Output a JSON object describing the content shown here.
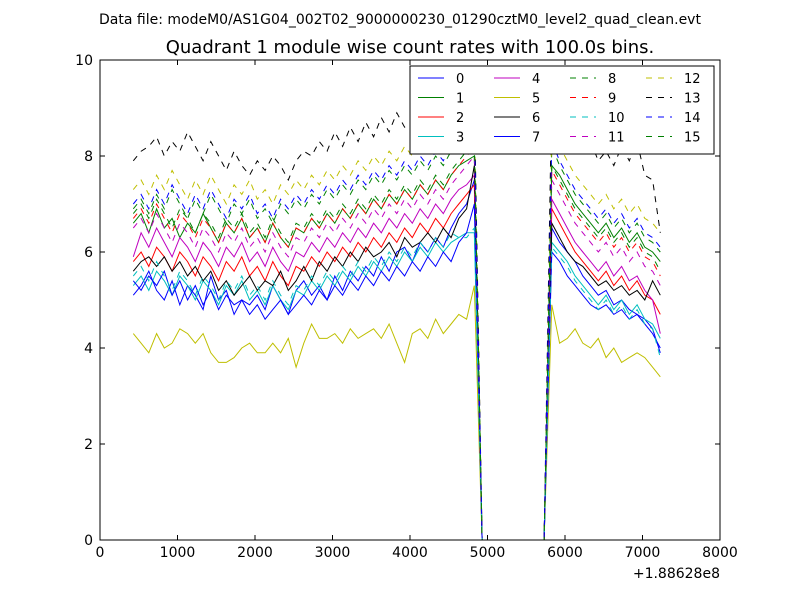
{
  "suptitle": "Data file: modeM0/AS1G04_002T02_9000000230_01290cztM0_level2_quad_clean.evt",
  "chart_data": {
    "type": "line",
    "title": "Quadrant 1 module wise count rates with 100.0s bins.",
    "xlabel": "",
    "ylabel": "",
    "x_offset_label": "+1.88628e8",
    "xlim": [
      0,
      8000
    ],
    "ylim": [
      0,
      10
    ],
    "x_ticks": [
      0,
      1000,
      2000,
      3000,
      4000,
      5000,
      6000,
      7000,
      8000
    ],
    "y_ticks": [
      0,
      2,
      4,
      6,
      8,
      10
    ],
    "grid": false,
    "legend_position": "top-right",
    "legend_columns": 4,
    "x": [
      430,
      530,
      630,
      730,
      830,
      930,
      1030,
      1130,
      1230,
      1330,
      1430,
      1530,
      1630,
      1730,
      1830,
      1930,
      2030,
      2130,
      2230,
      2330,
      2430,
      2530,
      2630,
      2730,
      2830,
      2930,
      3030,
      3130,
      3230,
      3330,
      3430,
      3530,
      3630,
      3730,
      3830,
      3930,
      4030,
      4130,
      4230,
      4330,
      4430,
      4530,
      4630,
      4730,
      4830,
      4930,
      5030,
      5130,
      5230,
      5330,
      5430,
      5530,
      5630,
      5730,
      5830,
      5930,
      6030,
      6130,
      6230,
      6330,
      6430,
      6530,
      6630,
      6730,
      6830,
      6930,
      7030,
      7130,
      7230
    ],
    "series": [
      {
        "name": "0",
        "color": "#0000ff",
        "dash": "solid",
        "values": [
          5.1,
          5.3,
          5.6,
          5.2,
          5.0,
          5.4,
          4.9,
          5.3,
          5.1,
          4.8,
          5.5,
          5.0,
          5.2,
          4.7,
          5.0,
          4.9,
          5.1,
          4.8,
          5.3,
          5.0,
          4.7,
          5.2,
          5.4,
          5.1,
          5.3,
          5.0,
          5.5,
          5.2,
          5.6,
          5.4,
          5.7,
          5.5,
          5.9,
          5.6,
          6.0,
          6.1,
          5.8,
          6.2,
          6.0,
          6.3,
          6.1,
          6.5,
          6.8,
          7.0,
          7.5,
          0,
          0,
          0,
          0,
          0,
          0,
          0,
          0,
          0,
          6.5,
          6.2,
          6.0,
          5.8,
          5.5,
          5.3,
          5.1,
          5.2,
          4.9,
          5.0,
          4.8,
          4.7,
          4.6,
          4.4,
          3.9
        ]
      },
      {
        "name": "1",
        "color": "#008000",
        "dash": "solid",
        "values": [
          6.6,
          6.8,
          6.4,
          6.9,
          6.5,
          6.7,
          6.3,
          6.6,
          6.4,
          6.8,
          6.5,
          6.2,
          6.6,
          6.4,
          6.7,
          6.3,
          6.5,
          6.2,
          6.6,
          6.3,
          6.1,
          6.5,
          6.4,
          6.7,
          6.5,
          6.8,
          6.6,
          6.9,
          6.7,
          7.0,
          6.8,
          7.1,
          6.9,
          7.2,
          7.0,
          7.3,
          7.1,
          7.4,
          7.2,
          7.5,
          7.3,
          7.6,
          7.8,
          7.9,
          8.0,
          0,
          0,
          0,
          0,
          0,
          0,
          0,
          0,
          0,
          7.8,
          7.6,
          7.3,
          7.0,
          6.8,
          6.6,
          6.4,
          6.6,
          6.3,
          6.5,
          6.2,
          6.4,
          6.1,
          6.0,
          5.8
        ]
      },
      {
        "name": "2",
        "color": "#ff0000",
        "dash": "solid",
        "values": [
          5.8,
          6.0,
          5.7,
          6.1,
          5.9,
          5.6,
          6.0,
          5.8,
          5.5,
          5.9,
          5.7,
          5.4,
          5.8,
          5.6,
          5.9,
          5.5,
          5.7,
          5.4,
          5.8,
          5.5,
          5.3,
          5.7,
          5.6,
          5.9,
          5.7,
          6.0,
          5.8,
          6.1,
          5.9,
          6.2,
          6.0,
          6.3,
          6.1,
          6.4,
          6.2,
          6.5,
          6.3,
          6.6,
          6.4,
          6.7,
          6.5,
          6.8,
          7.0,
          7.2,
          7.4,
          0,
          0,
          0,
          0,
          0,
          0,
          0,
          0,
          0,
          6.9,
          6.6,
          6.3,
          6.0,
          5.8,
          5.6,
          5.4,
          5.6,
          5.3,
          5.5,
          5.2,
          5.4,
          5.1,
          5.0,
          4.7
        ]
      },
      {
        "name": "3",
        "color": "#00bfbf",
        "dash": "solid",
        "values": [
          5.3,
          5.5,
          5.2,
          5.6,
          5.4,
          5.1,
          5.5,
          5.3,
          5.0,
          5.4,
          5.2,
          4.9,
          5.3,
          5.1,
          5.4,
          5.0,
          5.2,
          4.9,
          5.3,
          5.0,
          4.8,
          5.2,
          5.1,
          5.4,
          5.2,
          5.5,
          5.3,
          5.6,
          5.4,
          5.7,
          5.5,
          5.8,
          5.6,
          5.9,
          5.7,
          6.0,
          5.8,
          6.1,
          5.9,
          6.2,
          6.0,
          6.2,
          6.3,
          6.4,
          6.4,
          0,
          0,
          0,
          0,
          0,
          0,
          0,
          0,
          0,
          6.2,
          6.0,
          5.8,
          5.5,
          5.3,
          5.1,
          4.9,
          5.1,
          4.8,
          5.0,
          4.7,
          4.9,
          4.6,
          4.5,
          4.2
        ]
      },
      {
        "name": "4",
        "color": "#bf00bf",
        "dash": "solid",
        "values": [
          5.9,
          6.4,
          6.1,
          6.5,
          6.2,
          5.9,
          6.3,
          6.1,
          5.8,
          6.2,
          6.0,
          5.7,
          6.1,
          5.9,
          6.2,
          5.8,
          6.0,
          5.7,
          6.1,
          5.8,
          5.6,
          6.0,
          5.9,
          6.2,
          6.0,
          6.3,
          6.1,
          6.4,
          6.2,
          6.5,
          6.3,
          6.6,
          6.4,
          6.7,
          6.5,
          6.8,
          6.6,
          6.9,
          6.7,
          7.0,
          6.8,
          7.1,
          7.3,
          7.4,
          7.6,
          0,
          0,
          0,
          0,
          0,
          0,
          0,
          0,
          0,
          7.1,
          6.8,
          6.5,
          6.2,
          6.0,
          5.8,
          5.6,
          5.8,
          5.5,
          5.7,
          5.4,
          5.5,
          5.2,
          5.0,
          4.3
        ]
      },
      {
        "name": "5",
        "color": "#bfbf00",
        "dash": "solid",
        "values": [
          4.3,
          4.1,
          3.9,
          4.3,
          4.0,
          4.1,
          4.4,
          4.3,
          4.1,
          4.3,
          3.9,
          3.7,
          3.7,
          3.8,
          4.0,
          4.1,
          3.9,
          3.9,
          4.1,
          3.9,
          4.2,
          3.6,
          4.1,
          4.5,
          4.2,
          4.2,
          4.3,
          4.1,
          4.4,
          4.2,
          4.3,
          4.4,
          4.2,
          4.5,
          4.1,
          3.7,
          4.3,
          4.4,
          4.2,
          4.6,
          4.3,
          4.5,
          4.7,
          4.6,
          5.3,
          0,
          0,
          0,
          0,
          0,
          0,
          0,
          0,
          0,
          4.9,
          4.1,
          4.2,
          4.4,
          4.1,
          4.0,
          4.2,
          3.8,
          4.0,
          3.7,
          3.8,
          3.9,
          3.8,
          3.6,
          3.4
        ]
      },
      {
        "name": "6",
        "color": "#000000",
        "dash": "solid",
        "values": [
          5.6,
          5.8,
          5.9,
          5.7,
          5.9,
          5.6,
          5.8,
          5.5,
          5.7,
          5.4,
          5.6,
          5.2,
          5.4,
          5.1,
          5.3,
          5.5,
          5.2,
          5.4,
          5.3,
          5.6,
          5.2,
          5.4,
          5.7,
          5.4,
          5.8,
          5.6,
          5.9,
          5.7,
          6.0,
          5.8,
          6.1,
          5.9,
          6.0,
          6.2,
          5.9,
          6.3,
          6.1,
          6.2,
          6.4,
          6.2,
          6.5,
          6.3,
          6.7,
          6.9,
          7.8,
          0,
          0,
          0,
          0,
          0,
          0,
          0,
          0,
          0,
          6.6,
          6.3,
          6.0,
          5.8,
          5.7,
          5.5,
          5.3,
          5.4,
          5.2,
          5.3,
          5.1,
          5.2,
          5.0,
          5.4,
          5.1
        ]
      },
      {
        "name": "7",
        "color": "#0000ff",
        "dash": "solid",
        "values": [
          5.4,
          5.2,
          5.5,
          5.3,
          5.6,
          5.1,
          5.4,
          5.0,
          5.3,
          4.9,
          5.2,
          4.8,
          5.1,
          4.9,
          5.0,
          4.7,
          4.9,
          4.6,
          4.8,
          5.0,
          4.7,
          4.9,
          5.1,
          4.9,
          5.2,
          5.0,
          5.3,
          5.1,
          5.4,
          5.2,
          5.5,
          5.3,
          5.6,
          5.4,
          5.7,
          5.5,
          5.8,
          5.6,
          5.9,
          5.7,
          6.0,
          5.8,
          6.2,
          6.4,
          7.0,
          0,
          0,
          0,
          0,
          0,
          0,
          0,
          0,
          0,
          6.0,
          5.8,
          5.5,
          5.3,
          5.1,
          4.9,
          4.8,
          4.9,
          4.7,
          4.8,
          4.6,
          4.7,
          4.5,
          4.3,
          4.0
        ]
      },
      {
        "name": "8",
        "color": "#008000",
        "dash": "dashed",
        "values": [
          6.9,
          7.1,
          6.8,
          7.2,
          6.9,
          7.3,
          7.0,
          6.7,
          7.1,
          6.8,
          7.2,
          6.9,
          6.6,
          7.0,
          6.8,
          7.1,
          6.7,
          6.9,
          6.6,
          7.0,
          6.8,
          7.1,
          6.9,
          7.2,
          7.0,
          7.3,
          7.1,
          7.4,
          7.2,
          7.5,
          7.3,
          7.6,
          7.4,
          7.7,
          7.5,
          7.8,
          7.6,
          7.9,
          7.7,
          8.0,
          7.8,
          8.1,
          8.3,
          8.4,
          8.6,
          0,
          0,
          0,
          0,
          0,
          0,
          0,
          0,
          0,
          8.2,
          7.8,
          7.5,
          7.2,
          7.0,
          6.8,
          6.6,
          6.8,
          6.5,
          6.7,
          6.4,
          6.6,
          6.3,
          6.2,
          6.0
        ]
      },
      {
        "name": "9",
        "color": "#ff0000",
        "dash": "dashed",
        "values": [
          6.7,
          6.9,
          6.6,
          7.0,
          6.7,
          6.4,
          6.8,
          6.6,
          6.3,
          6.7,
          6.5,
          6.2,
          6.6,
          6.4,
          6.7,
          6.3,
          6.5,
          6.2,
          6.6,
          6.3,
          6.1,
          6.5,
          6.4,
          6.7,
          6.5,
          6.8,
          6.6,
          6.9,
          6.7,
          7.0,
          6.8,
          7.1,
          6.9,
          7.2,
          7.0,
          7.3,
          7.1,
          7.4,
          7.2,
          7.5,
          7.3,
          7.6,
          7.8,
          8.0,
          8.2,
          0,
          0,
          0,
          0,
          0,
          0,
          0,
          0,
          0,
          7.7,
          7.4,
          7.1,
          6.8,
          6.6,
          6.4,
          6.2,
          6.4,
          6.1,
          6.3,
          6.0,
          6.2,
          5.9,
          5.8,
          5.5
        ]
      },
      {
        "name": "10",
        "color": "#00bfbf",
        "dash": "dashed",
        "values": [
          5.5,
          5.7,
          5.4,
          5.8,
          5.5,
          5.2,
          5.6,
          5.4,
          5.1,
          5.5,
          5.3,
          5.0,
          5.4,
          5.2,
          5.5,
          5.1,
          5.3,
          5.0,
          5.4,
          5.1,
          4.9,
          5.3,
          5.2,
          5.5,
          5.3,
          5.6,
          5.4,
          5.7,
          5.5,
          5.8,
          5.6,
          5.9,
          5.7,
          6.0,
          5.8,
          6.1,
          5.9,
          6.2,
          6.0,
          6.3,
          6.1,
          6.4,
          6.3,
          6.3,
          6.5,
          0,
          0,
          0,
          0,
          0,
          0,
          0,
          0,
          0,
          6.1,
          5.9,
          5.7,
          5.4,
          5.2,
          5.0,
          4.8,
          5.0,
          4.7,
          4.9,
          4.6,
          4.8,
          4.5,
          4.4,
          3.8
        ]
      },
      {
        "name": "11",
        "color": "#bf00bf",
        "dash": "dashed",
        "values": [
          6.5,
          6.7,
          6.4,
          6.8,
          6.5,
          6.2,
          6.6,
          6.4,
          6.1,
          6.5,
          6.3,
          6.0,
          6.4,
          6.2,
          6.5,
          6.1,
          6.3,
          6.0,
          6.4,
          6.1,
          5.9,
          6.3,
          6.2,
          6.5,
          6.3,
          6.6,
          6.4,
          6.7,
          6.5,
          6.8,
          6.6,
          6.9,
          6.7,
          7.0,
          6.8,
          7.1,
          6.9,
          7.2,
          7.0,
          7.3,
          7.1,
          7.4,
          7.6,
          7.8,
          8.0,
          0,
          0,
          0,
          0,
          0,
          0,
          0,
          0,
          0,
          7.5,
          7.2,
          6.9,
          6.6,
          6.4,
          6.2,
          6.0,
          6.2,
          5.9,
          6.1,
          5.8,
          6.0,
          5.7,
          5.6,
          5.3
        ]
      },
      {
        "name": "12",
        "color": "#bfbf00",
        "dash": "dashed",
        "values": [
          7.3,
          7.5,
          7.2,
          7.6,
          7.3,
          7.7,
          7.4,
          7.1,
          7.5,
          7.2,
          7.6,
          7.3,
          7.0,
          7.4,
          7.2,
          7.5,
          7.1,
          7.3,
          7.0,
          7.4,
          7.2,
          7.5,
          7.3,
          7.6,
          7.4,
          7.7,
          7.5,
          7.8,
          7.6,
          7.9,
          7.7,
          8.0,
          7.8,
          8.1,
          7.9,
          8.2,
          8.0,
          8.3,
          8.1,
          8.4,
          8.2,
          8.5,
          8.7,
          8.8,
          8.9,
          0,
          0,
          0,
          0,
          0,
          0,
          0,
          0,
          0,
          8.6,
          8.2,
          7.9,
          7.6,
          7.4,
          7.2,
          7.0,
          7.2,
          6.9,
          7.1,
          6.8,
          7.0,
          6.7,
          6.6,
          6.4
        ]
      },
      {
        "name": "13",
        "color": "#000000",
        "dash": "dashed",
        "values": [
          7.9,
          8.1,
          8.2,
          8.4,
          8.0,
          8.3,
          8.1,
          8.5,
          8.2,
          7.9,
          8.3,
          8.0,
          7.7,
          8.1,
          7.8,
          7.6,
          7.9,
          7.7,
          8.0,
          7.8,
          7.5,
          7.9,
          8.1,
          8.0,
          8.3,
          8.1,
          8.5,
          8.2,
          8.6,
          8.3,
          8.7,
          8.4,
          8.8,
          8.5,
          8.9,
          8.6,
          8.7,
          8.8,
          8.6,
          8.9,
          8.7,
          9.0,
          9.1,
          9.2,
          9.2,
          0,
          0,
          0,
          0,
          0,
          0,
          0,
          0,
          0,
          9.4,
          8.9,
          8.5,
          8.2,
          8.0,
          8.3,
          7.9,
          8.1,
          7.8,
          8.2,
          7.9,
          8.3,
          7.6,
          7.5,
          6.4
        ]
      },
      {
        "name": "14",
        "color": "#0000ff",
        "dash": "dashed",
        "values": [
          7.0,
          7.2,
          6.9,
          7.3,
          7.0,
          7.4,
          7.1,
          6.8,
          7.2,
          6.9,
          7.3,
          7.0,
          6.7,
          7.1,
          6.9,
          7.2,
          6.8,
          7.0,
          6.7,
          7.1,
          6.9,
          7.2,
          7.0,
          7.3,
          7.1,
          7.4,
          7.2,
          7.5,
          7.3,
          7.6,
          7.4,
          7.7,
          7.5,
          7.8,
          7.6,
          7.9,
          7.7,
          8.0,
          7.8,
          8.1,
          7.9,
          8.2,
          8.4,
          8.5,
          8.6,
          0,
          0,
          0,
          0,
          0,
          0,
          0,
          0,
          0,
          8.3,
          7.9,
          7.6,
          7.3,
          7.1,
          6.9,
          6.7,
          6.9,
          6.6,
          6.8,
          6.5,
          6.7,
          6.4,
          6.3,
          6.1
        ]
      },
      {
        "name": "15",
        "color": "#008000",
        "dash": "dashed",
        "values": [
          6.8,
          7.0,
          6.7,
          7.1,
          6.8,
          6.5,
          6.9,
          6.7,
          6.4,
          6.8,
          6.6,
          6.3,
          6.7,
          6.5,
          6.8,
          6.4,
          6.6,
          6.3,
          6.7,
          6.4,
          6.2,
          6.6,
          6.5,
          6.8,
          6.6,
          6.9,
          6.7,
          7.0,
          6.8,
          7.1,
          6.9,
          7.2,
          7.0,
          7.3,
          7.1,
          7.4,
          7.2,
          7.5,
          7.3,
          7.6,
          7.4,
          7.7,
          7.9,
          8.1,
          8.3,
          0,
          0,
          0,
          0,
          0,
          0,
          0,
          0,
          0,
          7.8,
          7.5,
          7.2,
          6.9,
          6.7,
          6.5,
          6.3,
          6.5,
          6.2,
          6.4,
          6.1,
          6.3,
          6.0,
          5.9,
          5.6
        ]
      }
    ]
  }
}
